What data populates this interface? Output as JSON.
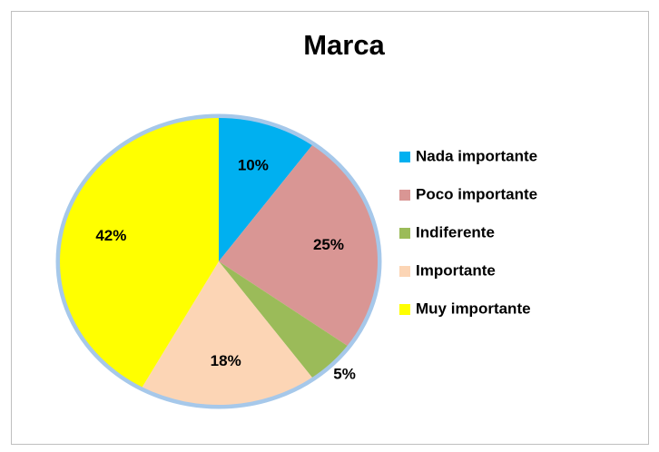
{
  "chart_data": {
    "type": "pie",
    "title": "Marca",
    "categories": [
      "Nada importante",
      "Poco importante",
      "Indiferente",
      "Importante",
      "Muy importante"
    ],
    "values": [
      10,
      25,
      5,
      18,
      42
    ],
    "value_labels": [
      "10%",
      "25%",
      "5%",
      "18%",
      "42%"
    ],
    "colors": [
      "#00b0f0",
      "#d99694",
      "#9bbb59",
      "#fcd5b5",
      "#ffff00"
    ],
    "legend": "right"
  }
}
